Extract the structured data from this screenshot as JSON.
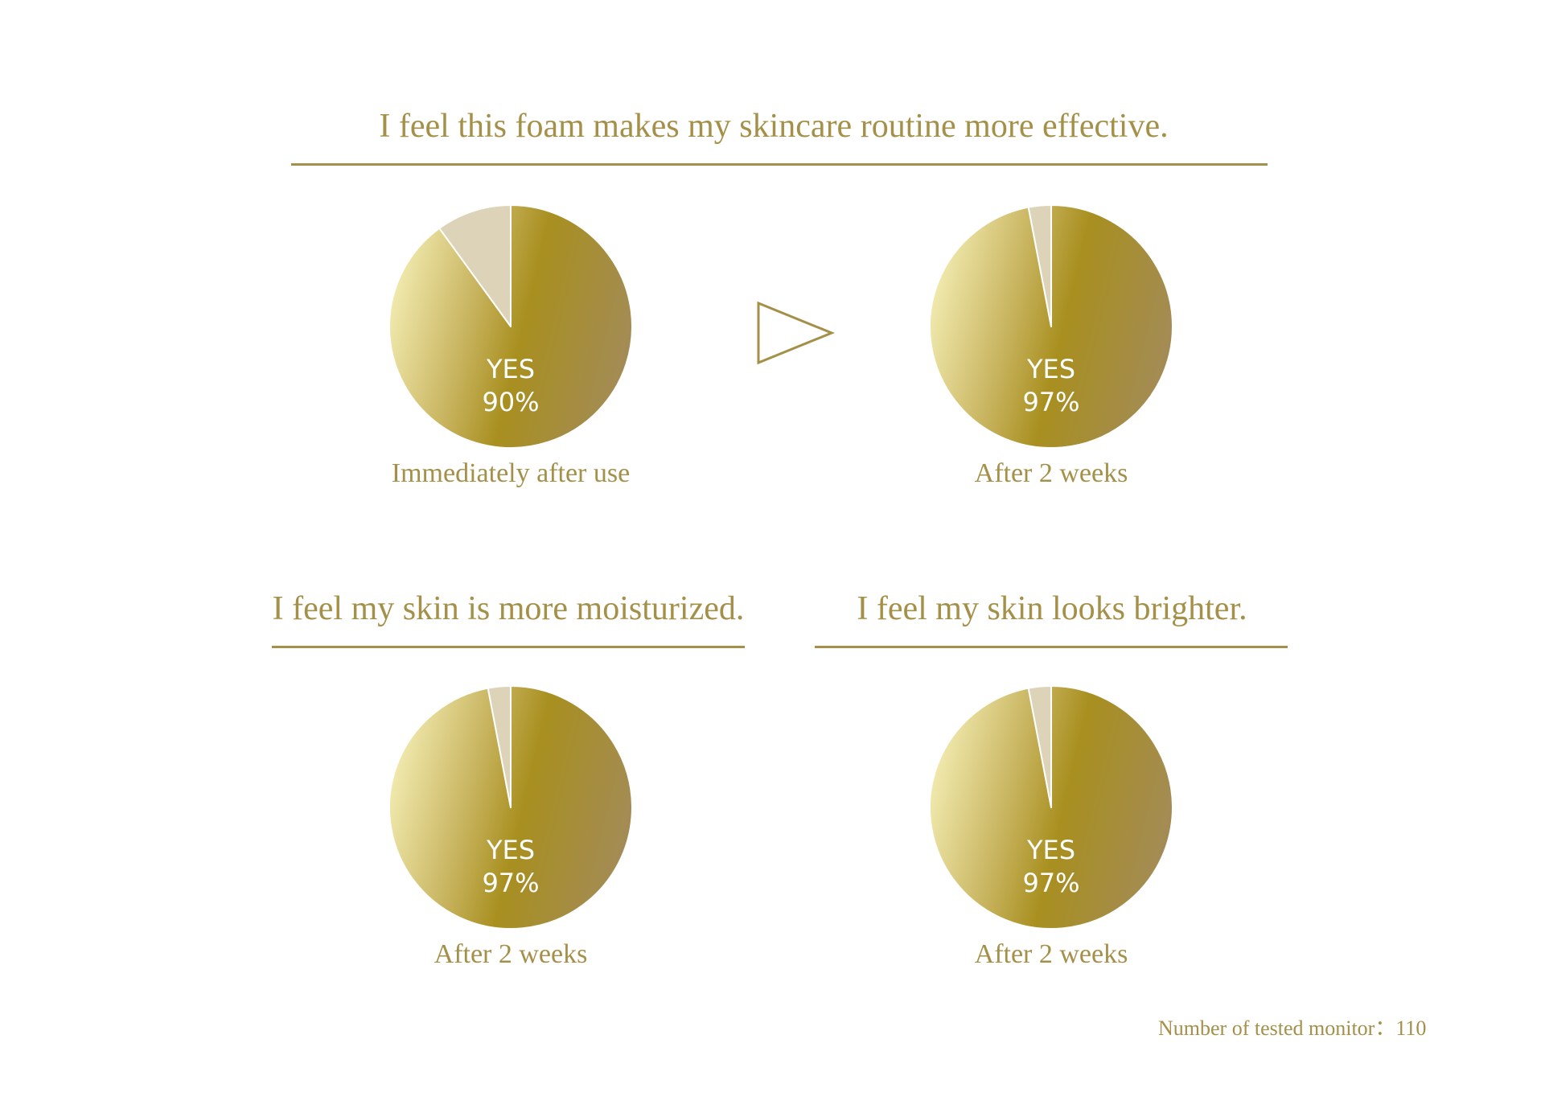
{
  "colors": {
    "accent": "#a49048",
    "no_slice": "#ddd3b8",
    "gradient": [
      "#f2ebb0",
      "#c8b45f",
      "#a88f1f",
      "#a38b58"
    ],
    "label_text": "#ffffff"
  },
  "sections": {
    "effective": {
      "title": "I feel this foam makes my skincare routine more effective."
    },
    "moisturized": {
      "title": "I feel my skin is more moisturized."
    },
    "brighter": {
      "title": "I feel my skin looks brighter."
    }
  },
  "arrow_icon": "play-triangle-outline-icon",
  "footnote": "Number of tested monitor：110",
  "chart_data": [
    {
      "type": "pie",
      "question": "I feel this foam makes my skincare routine more effective.",
      "caption": "Immediately after use",
      "slices": [
        {
          "label": "YES",
          "value": 90
        },
        {
          "label": "",
          "value": 10
        }
      ],
      "center_label": "YES",
      "center_value": "90%"
    },
    {
      "type": "pie",
      "question": "I feel this foam makes my skincare routine more effective.",
      "caption": "After 2 weeks",
      "slices": [
        {
          "label": "YES",
          "value": 97
        },
        {
          "label": "",
          "value": 3
        }
      ],
      "center_label": "YES",
      "center_value": "97%"
    },
    {
      "type": "pie",
      "question": "I feel my skin is more moisturized.",
      "caption": "After 2 weeks",
      "slices": [
        {
          "label": "YES",
          "value": 97
        },
        {
          "label": "",
          "value": 3
        }
      ],
      "center_label": "YES",
      "center_value": "97%"
    },
    {
      "type": "pie",
      "question": "I feel my skin looks brighter.",
      "caption": "After 2 weeks",
      "slices": [
        {
          "label": "YES",
          "value": 97
        },
        {
          "label": "",
          "value": 3
        }
      ],
      "center_label": "YES",
      "center_value": "97%"
    }
  ]
}
